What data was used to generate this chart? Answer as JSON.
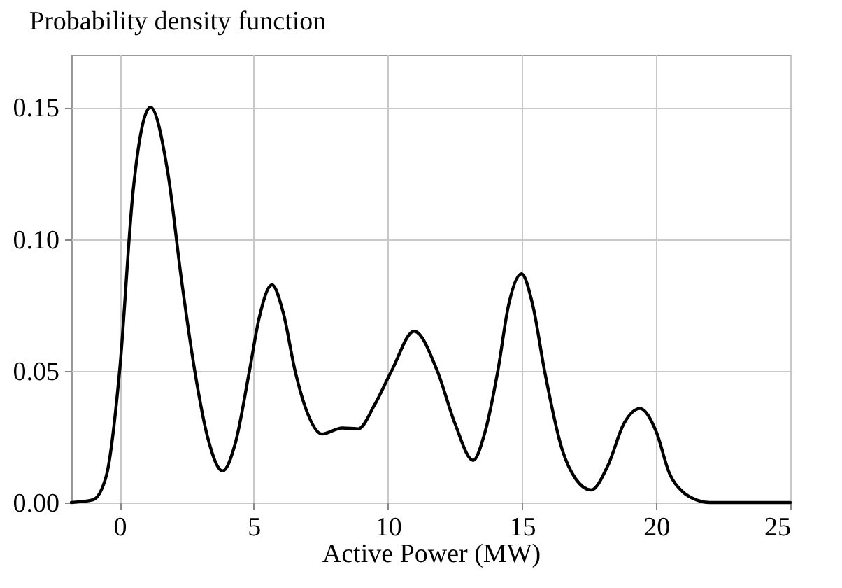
{
  "chart_data": {
    "type": "line",
    "title": "Probability density function",
    "xlabel": "Active Power (MW)",
    "x": [
      -1.8,
      -1,
      -0.5,
      0,
      0.5,
      1.15,
      1.8,
      2.3,
      2.8,
      3.3,
      3.84,
      4.3,
      4.84,
      5.2,
      5.68,
      6.1,
      6.54,
      7.0,
      7.54,
      8.3,
      8.9,
      9.5,
      10.14,
      10.98,
      11.84,
      12.5,
      13.18,
      13.6,
      14.1,
      14.5,
      14.98,
      15.4,
      15.84,
      16.5,
      17.0,
      17.58,
      18.2,
      18.8,
      19.4,
      20.0,
      20.5,
      21.0,
      21.5,
      22,
      25
    ],
    "series": [
      {
        "color": "#000000",
        "values": [
          0,
          0.001,
          0.01,
          0.05,
          0.118,
          0.15,
          0.125,
          0.085,
          0.05,
          0.024,
          0.012,
          0.022,
          0.05,
          0.07,
          0.0826,
          0.072,
          0.05,
          0.034,
          0.026,
          0.0283,
          0.028,
          0.037,
          0.05,
          0.065,
          0.05,
          0.03,
          0.016,
          0.026,
          0.05,
          0.075,
          0.0868,
          0.075,
          0.05,
          0.02,
          0.009,
          0.0048,
          0.014,
          0.03,
          0.0357,
          0.027,
          0.011,
          0.004,
          0.001,
          0,
          0
        ]
      }
    ],
    "xlim": [
      -1.8,
      25
    ],
    "xticks": [
      0,
      5,
      10,
      15,
      20,
      25
    ],
    "ylim": [
      0,
      0.17
    ],
    "yticks": [
      {
        "value": 0,
        "label": "0.00"
      },
      {
        "value": 0.05,
        "label": "0.05"
      },
      {
        "value": 0.1,
        "label": "0.10"
      },
      {
        "value": 0.15,
        "label": "0.15"
      }
    ],
    "grid": true,
    "marker": "none",
    "line_style": "solid"
  }
}
